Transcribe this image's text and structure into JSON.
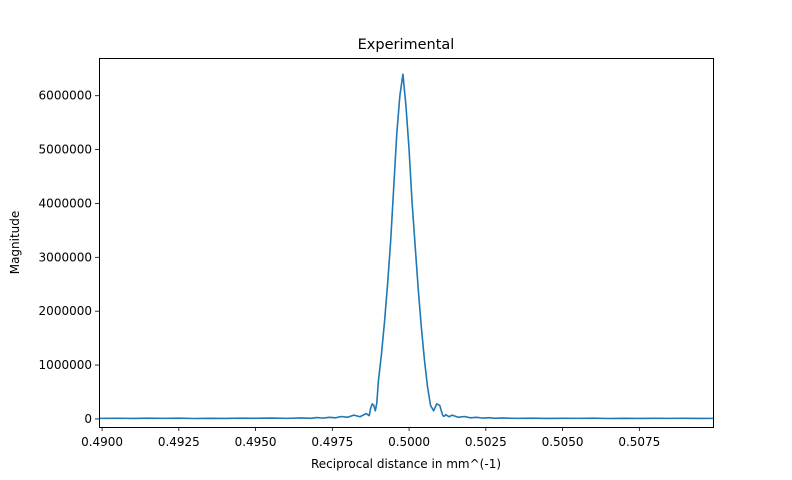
{
  "chart_data": {
    "type": "line",
    "title": "Experimental",
    "xlabel": "Reciprocal distance in mm^(-1)",
    "ylabel": "Magnitude",
    "xlim": [
      0.4899,
      0.5099
    ],
    "ylim": [
      -150000,
      6700000
    ],
    "x_ticks": [
      0.49,
      0.4925,
      0.495,
      0.4975,
      0.5,
      0.5025,
      0.505,
      0.5075
    ],
    "x_tick_labels": [
      "0.4900",
      "0.4925",
      "0.4950",
      "0.4975",
      "0.5000",
      "0.5025",
      "0.5050",
      "0.5075"
    ],
    "y_ticks": [
      0,
      1000000,
      2000000,
      3000000,
      4000000,
      5000000,
      6000000
    ],
    "y_tick_labels": [
      "0",
      "1000000",
      "2000000",
      "3000000",
      "4000000",
      "5000000",
      "6000000"
    ],
    "grid": false,
    "line_color": "#1f77b4",
    "series": [
      {
        "x": [
          0.4899,
          0.4905,
          0.491,
          0.4915,
          0.492,
          0.4925,
          0.493,
          0.4935,
          0.494,
          0.4945,
          0.495,
          0.4955,
          0.496,
          0.4965,
          0.4968,
          0.497,
          0.4972,
          0.4974,
          0.4976,
          0.4978,
          0.498,
          0.4982,
          0.4984,
          0.4986,
          0.4987,
          0.49875,
          0.4988,
          0.49885,
          0.4989,
          0.49895,
          0.499,
          0.4991,
          0.4992,
          0.4993,
          0.4994,
          0.4995,
          0.4996,
          0.4997,
          0.4998,
          0.4999,
          0.5,
          0.5001,
          0.5002,
          0.5003,
          0.5004,
          0.5005,
          0.5006,
          0.5007,
          0.5008,
          0.5009,
          0.501,
          0.50105,
          0.5011,
          0.50115,
          0.5012,
          0.50125,
          0.5013,
          0.5014,
          0.5016,
          0.5018,
          0.502,
          0.5022,
          0.5024,
          0.5026,
          0.5028,
          0.503,
          0.5035,
          0.504,
          0.5045,
          0.505,
          0.5055,
          0.506,
          0.5065,
          0.507,
          0.5075,
          0.508,
          0.5085,
          0.509,
          0.5095,
          0.5099
        ],
        "y": [
          10000,
          12000,
          9000,
          14000,
          10000,
          13000,
          8000,
          12000,
          9000,
          14000,
          11000,
          15000,
          10000,
          18000,
          12000,
          25000,
          15000,
          30000,
          20000,
          45000,
          30000,
          70000,
          40000,
          100000,
          60000,
          200000,
          280000,
          250000,
          150000,
          300000,
          700000,
          1200000,
          1800000,
          2500000,
          3300000,
          4300000,
          5300000,
          6000000,
          6400000,
          5800000,
          5000000,
          4000000,
          3200000,
          2400000,
          1700000,
          1100000,
          600000,
          250000,
          150000,
          280000,
          250000,
          150000,
          60000,
          50000,
          80000,
          60000,
          40000,
          70000,
          30000,
          45000,
          20000,
          30000,
          15000,
          22000,
          12000,
          18000,
          10000,
          14000,
          9000,
          12000,
          10000,
          13000,
          8000,
          12000,
          9000,
          11000,
          10000,
          12000,
          9000,
          10000
        ]
      }
    ]
  }
}
